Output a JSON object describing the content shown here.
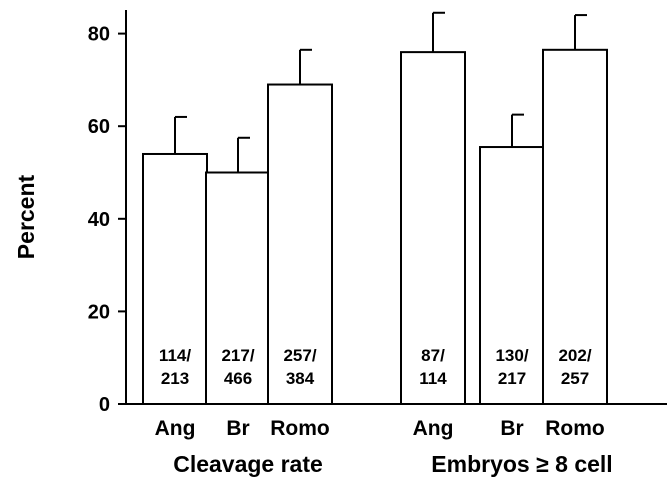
{
  "chart_data": {
    "type": "bar",
    "ylabel": "Percent",
    "ylim": [
      0,
      85
    ],
    "yticks": [
      0,
      20,
      40,
      60,
      80
    ],
    "grid": false,
    "groups": [
      {
        "label": "Cleavage rate",
        "label_suffix": "",
        "bars": [
          {
            "category": "Ang",
            "value": 54,
            "error": 8,
            "count_top": "114/",
            "count_bottom": "213"
          },
          {
            "category": "Br",
            "value": 50,
            "error": 7.5,
            "count_top": "217/",
            "count_bottom": "466"
          },
          {
            "category": "Romo",
            "value": 69,
            "error": 7.5,
            "count_top": "257/",
            "count_bottom": "384"
          }
        ]
      },
      {
        "label": "Embryos",
        "label_suffix": "≥ 8 cell",
        "bars": [
          {
            "category": "Ang",
            "value": 76,
            "error": 8.5,
            "count_top": "87/",
            "count_bottom": "114"
          },
          {
            "category": "Br",
            "value": 55.5,
            "error": 7,
            "count_top": "130/",
            "count_bottom": "217"
          },
          {
            "category": "Romo",
            "value": 76.5,
            "error": 7.5,
            "count_top": "202/",
            "count_bottom": "257"
          }
        ]
      }
    ]
  }
}
